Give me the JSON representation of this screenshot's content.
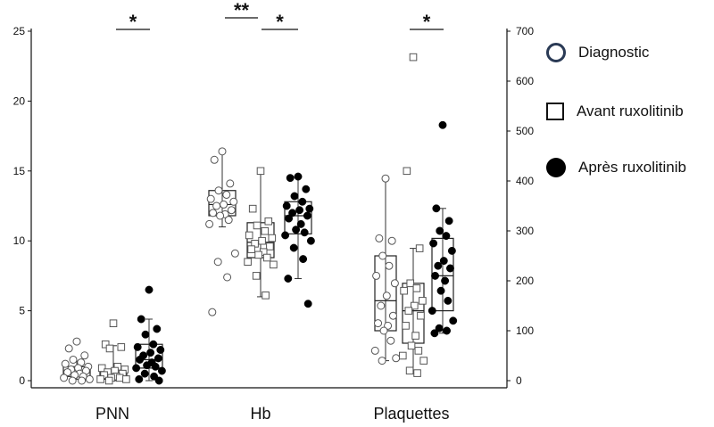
{
  "chart_data": {
    "type": "scatter",
    "title": "",
    "xlabel": "",
    "ylabel": "",
    "categories": [
      "PNN",
      "Hb",
      "Plaquettes"
    ],
    "left_axis": {
      "ylim": [
        0,
        25
      ],
      "ticks": [
        0,
        5,
        10,
        15,
        20,
        25
      ]
    },
    "right_axis": {
      "ylim": [
        0,
        700
      ],
      "ticks": [
        0,
        100,
        200,
        300,
        400,
        500,
        600,
        700
      ]
    },
    "legend_position": "right",
    "series": [
      {
        "name": "Diagnostic",
        "marker": "circle-open",
        "color": "#2a3a55",
        "groups": [
          {
            "category": "PNN",
            "axis": "left",
            "box": {
              "whisker_low": 0.1,
              "q1": 0.3,
              "median": 0.6,
              "q3": 1.0,
              "whisker_high": 1.4
            },
            "points": [
              2.8,
              2.3,
              1.8,
              1.5,
              1.3,
              1.2,
              1.0,
              0.9,
              0.8,
              0.7,
              0.6,
              0.5,
              0.4,
              0.3,
              0.2,
              0.1,
              0.0,
              0.0
            ]
          },
          {
            "category": "Hb",
            "axis": "left",
            "box": {
              "whisker_low": 11.0,
              "q1": 11.8,
              "median": 12.6,
              "q3": 13.6,
              "whisker_high": 16.4
            },
            "points": [
              16.4,
              15.8,
              14.1,
              13.6,
              13.3,
              13.0,
              12.8,
              12.6,
              12.5,
              12.2,
              12.0,
              11.9,
              11.8,
              11.5,
              11.2,
              9.1,
              8.5,
              7.4,
              4.9
            ]
          },
          {
            "category": "Plaquettes",
            "axis": "right",
            "box": {
              "whisker_low": 40,
              "q1": 100,
              "median": 160,
              "q3": 250,
              "whisker_high": 405
            },
            "points": [
              405,
              285,
              280,
              250,
              230,
              210,
              195,
              170,
              150,
              130,
              115,
              110,
              100,
              80,
              60,
              45,
              40
            ]
          }
        ]
      },
      {
        "name": "Avant ruxolitinib",
        "marker": "square-open",
        "color": "#111111",
        "groups": [
          {
            "category": "PNN",
            "axis": "left",
            "box": {
              "whisker_low": 0.0,
              "q1": 0.1,
              "median": 0.4,
              "q3": 0.8,
              "whisker_high": 2.5
            },
            "points": [
              4.1,
              2.6,
              2.4,
              2.3,
              1.0,
              0.9,
              0.8,
              0.7,
              0.6,
              0.5,
              0.4,
              0.3,
              0.2,
              0.2,
              0.1,
              0.1,
              0.0
            ]
          },
          {
            "category": "Hb",
            "axis": "left",
            "box": {
              "whisker_low": 6.0,
              "q1": 8.8,
              "median": 9.9,
              "q3": 11.3,
              "whisker_high": 15.0
            },
            "points": [
              15.0,
              12.3,
              11.4,
              11.1,
              10.7,
              10.4,
              10.2,
              10.0,
              9.8,
              9.6,
              9.4,
              9.2,
              9.0,
              8.8,
              8.5,
              8.3,
              7.5,
              6.1
            ]
          },
          {
            "category": "Plaquettes",
            "axis": "right",
            "box": {
              "whisker_low": 15,
              "q1": 75,
              "median": 140,
              "q3": 195,
              "whisker_high": 265
            },
            "points": [
              648,
              420,
              265,
              195,
              185,
              180,
              160,
              150,
              140,
              130,
              110,
              90,
              70,
              60,
              50,
              40,
              20,
              15
            ]
          }
        ]
      },
      {
        "name": "Après ruxolitinib",
        "marker": "circle-filled",
        "color": "#000000",
        "groups": [
          {
            "category": "PNN",
            "axis": "left",
            "box": {
              "whisker_low": 0.0,
              "q1": 0.9,
              "median": 1.5,
              "q3": 2.6,
              "whisker_high": 4.4
            },
            "points": [
              6.5,
              4.4,
              3.7,
              3.3,
              2.6,
              2.4,
              2.2,
              2.0,
              1.8,
              1.6,
              1.5,
              1.3,
              1.1,
              1.0,
              0.9,
              0.7,
              0.5,
              0.3,
              0.1,
              0.0
            ]
          },
          {
            "category": "Hb",
            "axis": "left",
            "box": {
              "whisker_low": 7.3,
              "q1": 10.5,
              "median": 11.8,
              "q3": 12.8,
              "whisker_high": 14.6
            },
            "points": [
              14.6,
              14.5,
              13.7,
              13.2,
              12.8,
              12.5,
              12.3,
              12.2,
              12.0,
              11.8,
              11.6,
              11.2,
              10.8,
              10.6,
              10.4,
              10.0,
              9.5,
              8.7,
              7.3,
              5.5
            ]
          },
          {
            "category": "Plaquettes",
            "axis": "right",
            "box": {
              "whisker_low": 95,
              "q1": 140,
              "median": 210,
              "q3": 285,
              "whisker_high": 345
            },
            "points": [
              512,
              345,
              320,
              300,
              290,
              275,
              260,
              240,
              230,
              225,
              210,
              200,
              180,
              160,
              140,
              120,
              105,
              100,
              95
            ]
          }
        ]
      }
    ],
    "significance": [
      {
        "category": "PNN",
        "label": "*",
        "between": [
          "Avant ruxolitinib",
          "Après ruxolitinib"
        ]
      },
      {
        "category": "Hb",
        "label": "**",
        "between": [
          "Diagnostic",
          "Avant ruxolitinib"
        ]
      },
      {
        "category": "Hb",
        "label": "*",
        "between": [
          "Avant ruxolitinib",
          "Après ruxolitinib"
        ]
      },
      {
        "category": "Plaquettes",
        "label": "*",
        "between": [
          "Avant ruxolitinib",
          "Après ruxolitinib"
        ]
      }
    ]
  },
  "legend": {
    "items": [
      {
        "label": "Diagnostic",
        "marker": "circle-open"
      },
      {
        "label": "Avant ruxolitinib",
        "marker": "square-open"
      },
      {
        "label": "Après ruxolitinib",
        "marker": "circle-filled"
      }
    ]
  }
}
